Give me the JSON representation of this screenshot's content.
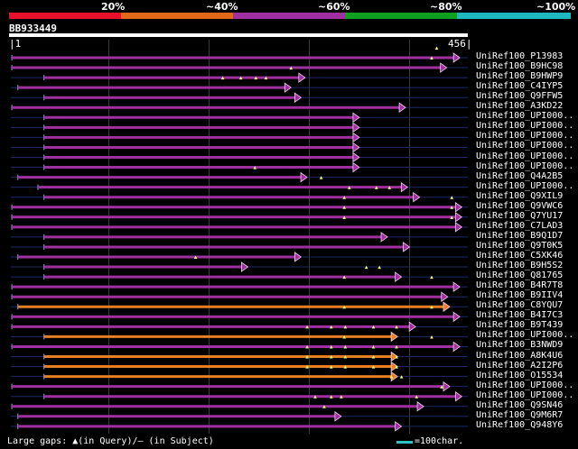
{
  "legend": {
    "p20": "20%",
    "p40": "~40%",
    "p60": "~60%",
    "p80": "~80%",
    "p100": "~100%",
    "colors": [
      "#e8102a",
      "#e06818",
      "#a030a0",
      "#10a020",
      "#20b8c0"
    ]
  },
  "query": {
    "name": "BB933449",
    "start": "1",
    "end": "456",
    "length": 456
  },
  "colors": {
    "purple": "#a030a0",
    "orange": "#e67e22",
    "gap_dot": "#ffff80",
    "query_line": "#ffffff",
    "scale": "#2fc0c8"
  },
  "hits": [
    {
      "name": "UniRef100_P13983",
      "start": 2,
      "end": 448,
      "color": "purple",
      "gaps": [
        425
      ]
    },
    {
      "name": "UniRef100_B9HC98",
      "start": 2,
      "end": 435,
      "color": "purple",
      "gaps": [
        420
      ]
    },
    {
      "name": "UniRef100_B9HWP9",
      "start": 34,
      "end": 294,
      "color": "purple",
      "gaps": [
        280
      ]
    },
    {
      "name": "UniRef100_C4IYP5",
      "start": 8,
      "end": 280,
      "color": "purple",
      "gaps": [
        212,
        230,
        245,
        255
      ]
    },
    {
      "name": "UniRef100_Q9FFW5",
      "start": 34,
      "end": 290,
      "color": "purple",
      "gaps": []
    },
    {
      "name": "UniRef100_A3KD22",
      "start": 2,
      "end": 394,
      "color": "purple",
      "gaps": []
    },
    {
      "name": "UniRef100_UPI000..",
      "start": 34,
      "end": 348,
      "color": "purple",
      "gaps": []
    },
    {
      "name": "UniRef100_UPI000..",
      "start": 34,
      "end": 348,
      "color": "purple",
      "gaps": []
    },
    {
      "name": "UniRef100_UPI000..",
      "start": 34,
      "end": 348,
      "color": "purple",
      "gaps": []
    },
    {
      "name": "UniRef100_UPI000..",
      "start": 34,
      "end": 348,
      "color": "purple",
      "gaps": []
    },
    {
      "name": "UniRef100_UPI000..",
      "start": 34,
      "end": 348,
      "color": "purple",
      "gaps": []
    },
    {
      "name": "UniRef100_UPI000..",
      "start": 34,
      "end": 348,
      "color": "purple",
      "gaps": []
    },
    {
      "name": "UniRef100_Q4A2B5",
      "start": 8,
      "end": 296,
      "color": "purple",
      "gaps": [
        244
      ]
    },
    {
      "name": "UniRef100_UPI000..",
      "start": 28,
      "end": 396,
      "color": "purple",
      "gaps": [
        310
      ]
    },
    {
      "name": "UniRef100_Q9XIL9",
      "start": 34,
      "end": 408,
      "color": "purple",
      "gaps": [
        338,
        365,
        378
      ]
    },
    {
      "name": "UniRef100_Q9VWC6",
      "start": 2,
      "end": 450,
      "color": "purple",
      "gaps": [
        333,
        440
      ]
    },
    {
      "name": "UniRef100_Q7YU17",
      "start": 2,
      "end": 450,
      "color": "purple",
      "gaps": [
        333,
        440
      ]
    },
    {
      "name": "UniRef100_C7LAD3",
      "start": 2,
      "end": 450,
      "color": "purple",
      "gaps": [
        333,
        440
      ]
    },
    {
      "name": "UniRef100_B9Q1D7",
      "start": 34,
      "end": 376,
      "color": "purple",
      "gaps": []
    },
    {
      "name": "UniRef100_Q9T0K5",
      "start": 34,
      "end": 398,
      "color": "purple",
      "gaps": []
    },
    {
      "name": "UniRef100_C5XK46",
      "start": 8,
      "end": 290,
      "color": "purple",
      "gaps": []
    },
    {
      "name": "UniRef100_B9H5S2",
      "start": 34,
      "end": 237,
      "color": "purple",
      "gaps": [
        185
      ]
    },
    {
      "name": "UniRef100_Q81765",
      "start": 34,
      "end": 390,
      "color": "purple",
      "gaps": [
        355,
        368
      ]
    },
    {
      "name": "UniRef100_B4R7T8",
      "start": 2,
      "end": 448,
      "color": "purple",
      "gaps": [
        333,
        420
      ]
    },
    {
      "name": "UniRef100_B9IIV4",
      "start": 2,
      "end": 436,
      "color": "purple",
      "gaps": []
    },
    {
      "name": "UniRef100_C8YQU7",
      "start": 8,
      "end": 438,
      "color": "orange",
      "gaps": []
    },
    {
      "name": "UniRef100_B4I7C3",
      "start": 2,
      "end": 448,
      "color": "purple",
      "gaps": [
        333,
        420
      ]
    },
    {
      "name": "UniRef100_B9T439",
      "start": 2,
      "end": 404,
      "color": "purple",
      "gaps": []
    },
    {
      "name": "UniRef100_UPI000..",
      "start": 34,
      "end": 386,
      "color": "orange",
      "gaps": [
        296,
        320,
        334,
        362,
        385
      ]
    },
    {
      "name": "UniRef100_B3NWD9",
      "start": 2,
      "end": 448,
      "color": "purple",
      "gaps": [
        333,
        420
      ]
    },
    {
      "name": "UniRef100_A8K4U6",
      "start": 34,
      "end": 386,
      "color": "orange",
      "gaps": [
        296,
        320,
        334,
        362,
        385
      ]
    },
    {
      "name": "UniRef100_A2I2P6",
      "start": 34,
      "end": 386,
      "color": "orange",
      "gaps": [
        296,
        320,
        334,
        362,
        385
      ]
    },
    {
      "name": "UniRef100_O15534",
      "start": 34,
      "end": 386,
      "color": "orange",
      "gaps": [
        296,
        320,
        334,
        362,
        385
      ]
    },
    {
      "name": "UniRef100_UPI000..",
      "start": 2,
      "end": 438,
      "color": "purple",
      "gaps": [
        380,
        390
      ]
    },
    {
      "name": "UniRef100_UPI000..",
      "start": 34,
      "end": 450,
      "color": "purple",
      "gaps": [
        430
      ]
    },
    {
      "name": "UniRef100_Q9SN46",
      "start": 2,
      "end": 412,
      "color": "purple",
      "gaps": [
        304,
        320,
        330,
        405
      ]
    },
    {
      "name": "UniRef100_Q9M6R7",
      "start": 8,
      "end": 330,
      "color": "purple",
      "gaps": [
        313
      ]
    },
    {
      "name": "UniRef100_Q948Y6",
      "start": 8,
      "end": 390,
      "color": "purple",
      "gaps": []
    }
  ],
  "footer": {
    "left": "Large gaps: ▲(in Query)/– (in Subject)",
    "right": "=100char."
  }
}
